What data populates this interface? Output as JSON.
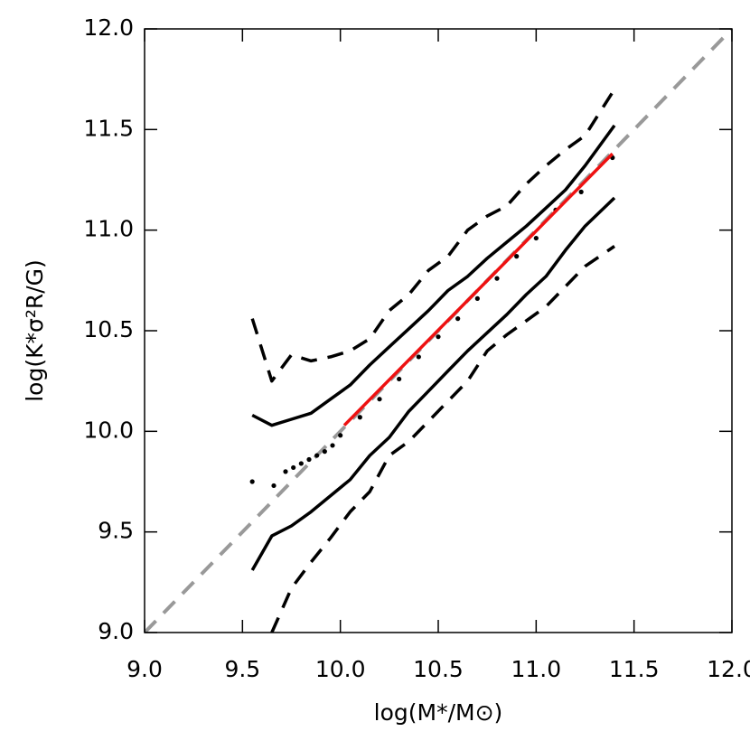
{
  "chart_data": {
    "type": "line",
    "xlabel": "log(M*/M⊙)",
    "ylabel": "log(K*σ²R/G)",
    "xlim": [
      9.0,
      12.0
    ],
    "ylim": [
      9.0,
      12.0
    ],
    "xticks": [
      {
        "value": 9,
        "label": "9.0"
      },
      {
        "value": 9.5,
        "label": "9.5"
      },
      {
        "value": 10,
        "label": "10.0"
      },
      {
        "value": 10.5,
        "label": "10.5"
      },
      {
        "value": 11,
        "label": "11.0"
      },
      {
        "value": 11.5,
        "label": "11.5"
      },
      {
        "value": 12,
        "label": "12.0"
      }
    ],
    "yticks": [
      {
        "value": 9,
        "label": "9.0"
      },
      {
        "value": 9.5,
        "label": "9.5"
      },
      {
        "value": 10,
        "label": "10.0"
      },
      {
        "value": 10.5,
        "label": "10.5"
      },
      {
        "value": 11,
        "label": "11.0"
      },
      {
        "value": 11.5,
        "label": "11.5"
      },
      {
        "value": 12,
        "label": "12.0"
      }
    ],
    "series": [
      {
        "color": "#999999",
        "style": "dashed",
        "x": [
          9.0,
          12.0
        ],
        "values": [
          9.0,
          12.0
        ]
      },
      {
        "color": "#000000",
        "style": "dashed",
        "x": [
          9.55,
          9.65,
          9.75,
          9.85,
          9.95,
          10.05,
          10.15,
          10.25,
          10.35,
          10.45,
          10.55,
          10.65,
          10.75,
          10.85,
          10.95,
          11.05,
          11.15,
          11.25,
          11.4
        ],
        "values": [
          10.56,
          10.25,
          10.38,
          10.35,
          10.37,
          10.4,
          10.46,
          10.6,
          10.68,
          10.8,
          10.87,
          11.0,
          11.07,
          11.12,
          11.23,
          11.32,
          11.4,
          11.47,
          11.7
        ]
      },
      {
        "color": "#000000",
        "style": "solid",
        "x": [
          9.55,
          9.65,
          9.75,
          9.85,
          9.95,
          10.05,
          10.15,
          10.25,
          10.35,
          10.45,
          10.55,
          10.65,
          10.75,
          10.85,
          10.95,
          11.05,
          11.15,
          11.25,
          11.4
        ],
        "values": [
          10.08,
          10.03,
          10.06,
          10.09,
          10.16,
          10.23,
          10.33,
          10.42,
          10.51,
          10.6,
          10.7,
          10.77,
          10.86,
          10.94,
          11.02,
          11.11,
          11.2,
          11.32,
          11.52
        ]
      },
      {
        "color": "#000000",
        "style": "solid",
        "x": [
          9.55,
          9.65,
          9.75,
          9.85,
          9.95,
          10.05,
          10.15,
          10.25,
          10.35,
          10.45,
          10.55,
          10.65,
          10.75,
          10.85,
          10.95,
          11.05,
          11.15,
          11.25,
          11.4
        ],
        "values": [
          9.31,
          9.48,
          9.53,
          9.6,
          9.68,
          9.76,
          9.88,
          9.97,
          10.1,
          10.2,
          10.3,
          10.4,
          10.49,
          10.58,
          10.68,
          10.77,
          10.9,
          11.02,
          11.16
        ]
      },
      {
        "color": "#000000",
        "style": "dashed",
        "x": [
          9.55,
          9.65,
          9.75,
          9.85,
          9.95,
          10.05,
          10.15,
          10.25,
          10.35,
          10.45,
          10.55,
          10.65,
          10.75,
          10.85,
          10.95,
          11.05,
          11.15,
          11.25,
          11.4
        ],
        "values": [
          null,
          9.0,
          9.22,
          9.35,
          9.47,
          9.6,
          9.7,
          9.88,
          9.95,
          10.05,
          10.15,
          10.25,
          10.4,
          10.48,
          10.55,
          10.62,
          10.72,
          10.82,
          10.92
        ]
      },
      {
        "color": "#000000",
        "style": "dots",
        "x": [
          9.55,
          9.66,
          9.72,
          9.76,
          9.8,
          9.84,
          9.88,
          9.92,
          9.96,
          10.0,
          10.1,
          10.2,
          10.3,
          10.4,
          10.5,
          10.6,
          10.7,
          10.8,
          10.9,
          11.0,
          11.1,
          11.23,
          11.39
        ],
        "values": [
          9.75,
          9.73,
          9.8,
          9.82,
          9.84,
          9.86,
          9.88,
          9.9,
          9.93,
          9.98,
          10.07,
          10.16,
          10.26,
          10.37,
          10.47,
          10.56,
          10.66,
          10.76,
          10.87,
          10.96,
          11.1,
          11.19,
          11.36
        ]
      },
      {
        "color": "#ee1111",
        "style": "solid",
        "x": [
          10.02,
          11.39
        ],
        "values": [
          10.03,
          11.38
        ]
      }
    ]
  }
}
